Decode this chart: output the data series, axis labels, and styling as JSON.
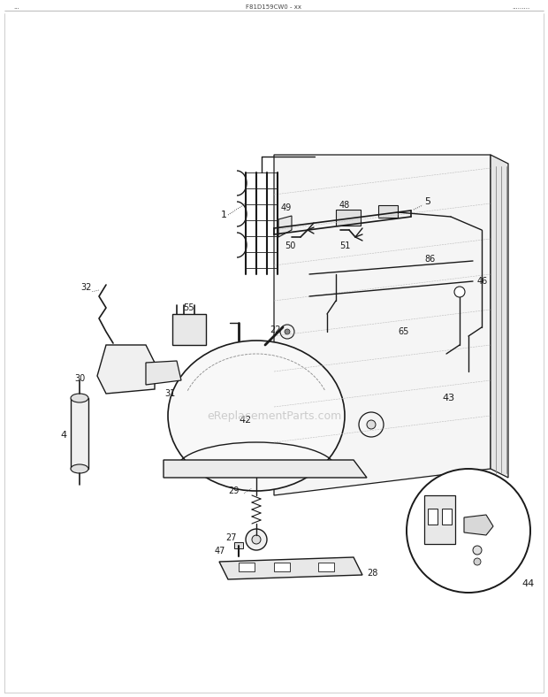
{
  "bg_color": "#ffffff",
  "line_color": "#1a1a1a",
  "fig_width": 6.2,
  "fig_height": 7.88,
  "dpi": 100,
  "watermark": "eReplacementParts.com",
  "header_left": "...",
  "header_center": "F81D159CW0 - xx",
  "header_right": "........."
}
